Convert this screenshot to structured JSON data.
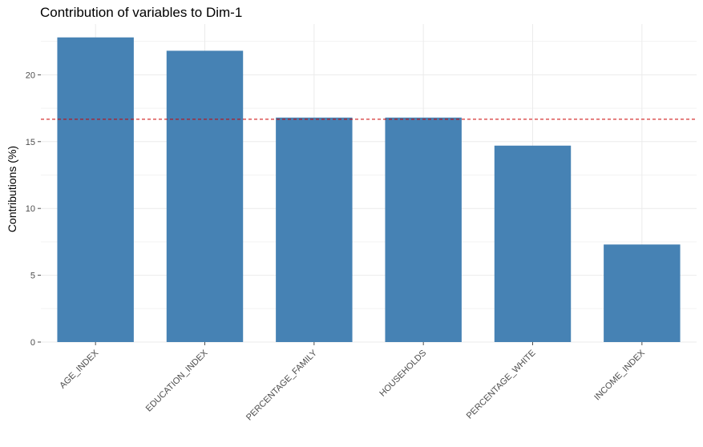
{
  "chart_data": {
    "type": "bar",
    "title": "Contribution of variables to Dim-1",
    "xlabel": "",
    "ylabel": "Contributions (%)",
    "categories": [
      "AGE_INDEX",
      "EDUCATION_INDEX",
      "PERCENTAGE_FAMILY",
      "HOUSEHOLDS",
      "PERCENTAGE_WHITE",
      "INCOME_INDEX"
    ],
    "values": [
      22.8,
      21.8,
      16.8,
      16.8,
      14.7,
      7.3
    ],
    "reference_line": 16.67,
    "ylim": [
      0,
      23.8
    ],
    "yticks": [
      0,
      5,
      10,
      15,
      20
    ],
    "grid": true,
    "colors": {
      "bar": "#4682B4",
      "reference_line": "#cc0000",
      "grid": "#ebebeb"
    }
  }
}
